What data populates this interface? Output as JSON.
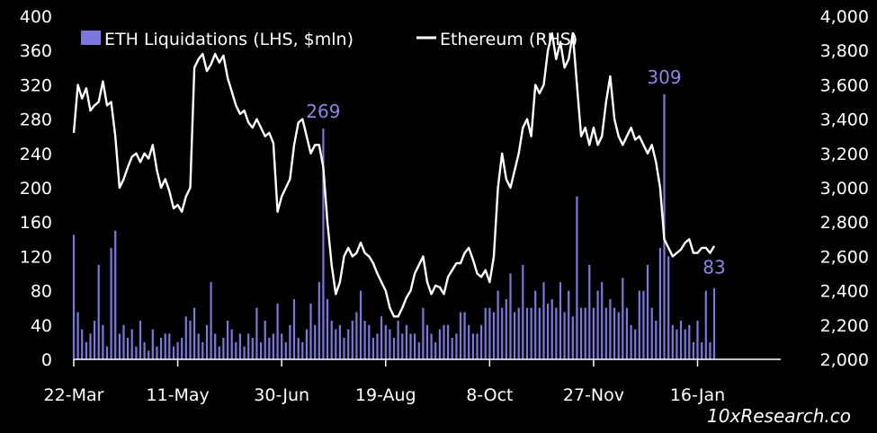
{
  "chart_data": {
    "type": "bar+line",
    "legend": [
      {
        "label": "ETH Liquidations (LHS, $mln)",
        "color": "#7b78e0",
        "kind": "bar"
      },
      {
        "label": "Ethereum (RHS)",
        "color": "#ffffff",
        "kind": "line"
      }
    ],
    "left_axis": {
      "ticks": [
        "400",
        "360",
        "320",
        "280",
        "240",
        "200",
        "160",
        "120",
        "80",
        "40",
        "0"
      ],
      "ylim": [
        0,
        400
      ]
    },
    "right_axis": {
      "ticks": [
        "4,000",
        "3,800",
        "3,600",
        "3,400",
        "3,200",
        "3,000",
        "2,800",
        "2,600",
        "2,400",
        "2,200",
        "2,000"
      ],
      "ylim": [
        2000,
        4000
      ]
    },
    "x_labels": [
      "22-Mar",
      "11-May",
      "30-Jun",
      "19-Aug",
      "8-Oct",
      "27-Nov",
      "16-Jan"
    ],
    "x_range_days": [
      0,
      340
    ],
    "ethereum_line": [
      [
        0,
        3320
      ],
      [
        2,
        3600
      ],
      [
        4,
        3520
      ],
      [
        6,
        3580
      ],
      [
        8,
        3450
      ],
      [
        10,
        3480
      ],
      [
        12,
        3500
      ],
      [
        14,
        3620
      ],
      [
        16,
        3480
      ],
      [
        18,
        3500
      ],
      [
        20,
        3300
      ],
      [
        22,
        3000
      ],
      [
        24,
        3050
      ],
      [
        26,
        3120
      ],
      [
        28,
        3180
      ],
      [
        30,
        3200
      ],
      [
        32,
        3150
      ],
      [
        34,
        3200
      ],
      [
        36,
        3170
      ],
      [
        38,
        3250
      ],
      [
        40,
        3100
      ],
      [
        42,
        3000
      ],
      [
        44,
        3050
      ],
      [
        46,
        2980
      ],
      [
        48,
        2880
      ],
      [
        50,
        2900
      ],
      [
        52,
        2860
      ],
      [
        54,
        2950
      ],
      [
        56,
        3000
      ],
      [
        58,
        3700
      ],
      [
        60,
        3750
      ],
      [
        62,
        3780
      ],
      [
        64,
        3680
      ],
      [
        66,
        3720
      ],
      [
        68,
        3780
      ],
      [
        70,
        3730
      ],
      [
        72,
        3770
      ],
      [
        74,
        3640
      ],
      [
        76,
        3560
      ],
      [
        78,
        3480
      ],
      [
        80,
        3430
      ],
      [
        82,
        3450
      ],
      [
        84,
        3380
      ],
      [
        86,
        3350
      ],
      [
        88,
        3400
      ],
      [
        90,
        3350
      ],
      [
        92,
        3300
      ],
      [
        94,
        3320
      ],
      [
        96,
        3260
      ],
      [
        98,
        2860
      ],
      [
        100,
        2950
      ],
      [
        102,
        3000
      ],
      [
        104,
        3050
      ],
      [
        106,
        3250
      ],
      [
        108,
        3380
      ],
      [
        110,
        3400
      ],
      [
        112,
        3300
      ],
      [
        114,
        3200
      ],
      [
        116,
        3250
      ],
      [
        118,
        3250
      ],
      [
        120,
        3120
      ],
      [
        122,
        2800
      ],
      [
        124,
        2550
      ],
      [
        126,
        2380
      ],
      [
        128,
        2450
      ],
      [
        130,
        2600
      ],
      [
        132,
        2650
      ],
      [
        134,
        2600
      ],
      [
        136,
        2620
      ],
      [
        138,
        2680
      ],
      [
        140,
        2620
      ],
      [
        142,
        2600
      ],
      [
        144,
        2560
      ],
      [
        146,
        2500
      ],
      [
        148,
        2450
      ],
      [
        150,
        2400
      ],
      [
        152,
        2300
      ],
      [
        154,
        2250
      ],
      [
        156,
        2250
      ],
      [
        158,
        2300
      ],
      [
        160,
        2360
      ],
      [
        162,
        2400
      ],
      [
        164,
        2500
      ],
      [
        166,
        2550
      ],
      [
        168,
        2600
      ],
      [
        170,
        2450
      ],
      [
        172,
        2380
      ],
      [
        174,
        2430
      ],
      [
        176,
        2420
      ],
      [
        178,
        2380
      ],
      [
        180,
        2480
      ],
      [
        182,
        2520
      ],
      [
        184,
        2560
      ],
      [
        186,
        2560
      ],
      [
        188,
        2620
      ],
      [
        190,
        2650
      ],
      [
        192,
        2580
      ],
      [
        194,
        2500
      ],
      [
        196,
        2480
      ],
      [
        198,
        2520
      ],
      [
        200,
        2450
      ],
      [
        202,
        2600
      ],
      [
        204,
        3000
      ],
      [
        206,
        3200
      ],
      [
        208,
        3050
      ],
      [
        210,
        3000
      ],
      [
        212,
        3100
      ],
      [
        214,
        3200
      ],
      [
        216,
        3350
      ],
      [
        218,
        3400
      ],
      [
        220,
        3300
      ],
      [
        222,
        3600
      ],
      [
        224,
        3550
      ],
      [
        226,
        3600
      ],
      [
        228,
        3800
      ],
      [
        230,
        3900
      ],
      [
        232,
        3750
      ],
      [
        234,
        3850
      ],
      [
        236,
        3700
      ],
      [
        238,
        3750
      ],
      [
        240,
        3900
      ],
      [
        242,
        3600
      ],
      [
        244,
        3300
      ],
      [
        246,
        3350
      ],
      [
        248,
        3250
      ],
      [
        250,
        3350
      ],
      [
        252,
        3250
      ],
      [
        254,
        3300
      ],
      [
        256,
        3500
      ],
      [
        258,
        3650
      ],
      [
        260,
        3400
      ],
      [
        262,
        3300
      ],
      [
        264,
        3250
      ],
      [
        266,
        3300
      ],
      [
        268,
        3350
      ],
      [
        270,
        3280
      ],
      [
        272,
        3300
      ],
      [
        274,
        3250
      ],
      [
        276,
        3200
      ],
      [
        278,
        3250
      ],
      [
        280,
        3150
      ],
      [
        282,
        3000
      ],
      [
        284,
        2700
      ],
      [
        286,
        2650
      ],
      [
        288,
        2600
      ],
      [
        290,
        2620
      ],
      [
        292,
        2640
      ],
      [
        294,
        2680
      ],
      [
        296,
        2700
      ],
      [
        298,
        2620
      ],
      [
        300,
        2620
      ],
      [
        302,
        2650
      ],
      [
        304,
        2650
      ],
      [
        306,
        2620
      ],
      [
        308,
        2660
      ]
    ],
    "liquidation_bars": [
      [
        0,
        145
      ],
      [
        2,
        55
      ],
      [
        4,
        35
      ],
      [
        6,
        20
      ],
      [
        8,
        30
      ],
      [
        10,
        45
      ],
      [
        12,
        110
      ],
      [
        14,
        40
      ],
      [
        16,
        15
      ],
      [
        18,
        130
      ],
      [
        20,
        150
      ],
      [
        22,
        30
      ],
      [
        24,
        40
      ],
      [
        26,
        25
      ],
      [
        28,
        35
      ],
      [
        30,
        15
      ],
      [
        32,
        45
      ],
      [
        34,
        20
      ],
      [
        36,
        10
      ],
      [
        38,
        35
      ],
      [
        40,
        15
      ],
      [
        42,
        25
      ],
      [
        44,
        30
      ],
      [
        46,
        30
      ],
      [
        48,
        15
      ],
      [
        50,
        20
      ],
      [
        52,
        25
      ],
      [
        54,
        50
      ],
      [
        56,
        45
      ],
      [
        58,
        60
      ],
      [
        60,
        30
      ],
      [
        62,
        20
      ],
      [
        64,
        40
      ],
      [
        66,
        90
      ],
      [
        68,
        30
      ],
      [
        70,
        15
      ],
      [
        72,
        25
      ],
      [
        74,
        45
      ],
      [
        76,
        35
      ],
      [
        78,
        20
      ],
      [
        80,
        30
      ],
      [
        82,
        15
      ],
      [
        84,
        30
      ],
      [
        86,
        25
      ],
      [
        88,
        60
      ],
      [
        90,
        20
      ],
      [
        92,
        45
      ],
      [
        94,
        25
      ],
      [
        96,
        30
      ],
      [
        98,
        65
      ],
      [
        100,
        30
      ],
      [
        102,
        20
      ],
      [
        104,
        40
      ],
      [
        106,
        70
      ],
      [
        108,
        25
      ],
      [
        110,
        20
      ],
      [
        112,
        35
      ],
      [
        114,
        65
      ],
      [
        116,
        40
      ],
      [
        118,
        90
      ],
      [
        120,
        269
      ],
      [
        122,
        70
      ],
      [
        124,
        45
      ],
      [
        126,
        35
      ],
      [
        128,
        40
      ],
      [
        130,
        25
      ],
      [
        132,
        35
      ],
      [
        134,
        45
      ],
      [
        136,
        55
      ],
      [
        138,
        80
      ],
      [
        140,
        45
      ],
      [
        142,
        40
      ],
      [
        144,
        25
      ],
      [
        146,
        30
      ],
      [
        148,
        50
      ],
      [
        150,
        40
      ],
      [
        152,
        35
      ],
      [
        154,
        25
      ],
      [
        156,
        45
      ],
      [
        158,
        30
      ],
      [
        160,
        40
      ],
      [
        162,
        30
      ],
      [
        164,
        30
      ],
      [
        166,
        20
      ],
      [
        168,
        60
      ],
      [
        170,
        40
      ],
      [
        172,
        30
      ],
      [
        174,
        20
      ],
      [
        176,
        35
      ],
      [
        178,
        40
      ],
      [
        180,
        40
      ],
      [
        182,
        25
      ],
      [
        184,
        30
      ],
      [
        186,
        55
      ],
      [
        188,
        55
      ],
      [
        190,
        40
      ],
      [
        192,
        30
      ],
      [
        194,
        30
      ],
      [
        196,
        40
      ],
      [
        198,
        60
      ],
      [
        200,
        60
      ],
      [
        202,
        55
      ],
      [
        204,
        80
      ],
      [
        206,
        60
      ],
      [
        208,
        70
      ],
      [
        210,
        100
      ],
      [
        212,
        55
      ],
      [
        214,
        60
      ],
      [
        216,
        110
      ],
      [
        218,
        60
      ],
      [
        220,
        60
      ],
      [
        222,
        80
      ],
      [
        224,
        60
      ],
      [
        226,
        90
      ],
      [
        228,
        65
      ],
      [
        230,
        70
      ],
      [
        232,
        60
      ],
      [
        234,
        90
      ],
      [
        236,
        55
      ],
      [
        238,
        80
      ],
      [
        240,
        50
      ],
      [
        242,
        190
      ],
      [
        244,
        60
      ],
      [
        246,
        60
      ],
      [
        248,
        110
      ],
      [
        250,
        60
      ],
      [
        252,
        80
      ],
      [
        254,
        90
      ],
      [
        256,
        60
      ],
      [
        258,
        70
      ],
      [
        260,
        60
      ],
      [
        262,
        55
      ],
      [
        264,
        95
      ],
      [
        266,
        60
      ],
      [
        268,
        40
      ],
      [
        270,
        35
      ],
      [
        272,
        80
      ],
      [
        274,
        80
      ],
      [
        276,
        110
      ],
      [
        278,
        60
      ],
      [
        280,
        45
      ],
      [
        282,
        130
      ],
      [
        284,
        309
      ],
      [
        286,
        120
      ],
      [
        288,
        40
      ],
      [
        290,
        35
      ],
      [
        292,
        45
      ],
      [
        294,
        35
      ],
      [
        296,
        40
      ],
      [
        298,
        20
      ],
      [
        300,
        45
      ],
      [
        302,
        20
      ],
      [
        304,
        80
      ],
      [
        306,
        20
      ],
      [
        308,
        83
      ]
    ],
    "annotations": [
      {
        "text": "269",
        "x": 120,
        "value": 269
      },
      {
        "text": "309",
        "x": 284,
        "value": 309
      },
      {
        "text": "83",
        "x": 308,
        "value": 83
      }
    ],
    "source": "10xResearch.co"
  }
}
